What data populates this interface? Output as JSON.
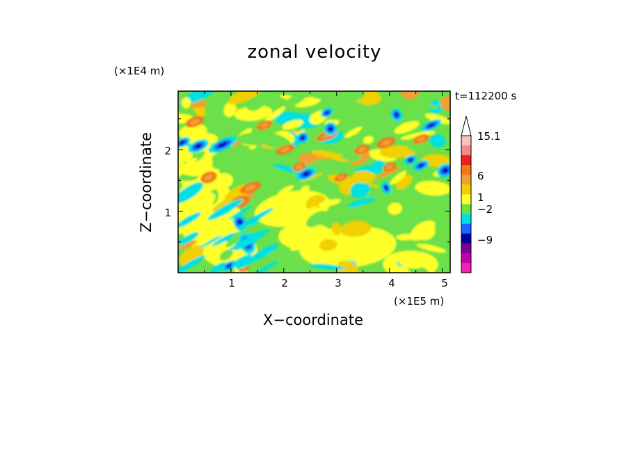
{
  "chart_data": {
    "type": "heatmap",
    "title": "zonal velocity",
    "xlabel": "X−coordinate",
    "ylabel": "Z−coordinate",
    "x_unit": "(×1E5 m)",
    "y_unit": "(×1E4 m)",
    "time_label": "t=112200 s",
    "xlim": [
      0,
      5.15
    ],
    "ylim": [
      0,
      2.95
    ],
    "x_ticks": [
      "1",
      "2",
      "3",
      "4",
      "5"
    ],
    "y_ticks": [
      "1",
      "2"
    ],
    "colorbar": {
      "labels": [
        "15.1",
        "6",
        "1",
        "−2",
        "−9"
      ],
      "levels_top_to_bottom": [
        "arrow",
        "15.1",
        "12",
        "9",
        "6",
        "3",
        "1",
        "0",
        "-1",
        "-2",
        "-5",
        "-7",
        "-9",
        "-12",
        "below"
      ],
      "colors": [
        "#ffffff",
        "#f7c1c1",
        "#f28a8a",
        "#e8221c",
        "#f07a1a",
        "#f0a032",
        "#f0d000",
        "#ffff2a",
        "#6be04a",
        "#00e0e0",
        "#1e64ff",
        "#0000a0",
        "#7a0096",
        "#c000a8",
        "#f020b0"
      ]
    },
    "field_palette": {
      "dark_blue": "#0000a0",
      "blue": "#1e64ff",
      "cyan": "#00e0e0",
      "green": "#6be04a",
      "yellow": "#ffff2a",
      "light_orange": "#f0d000",
      "orange": "#f0a032",
      "red_orange": "#f07a1a"
    }
  }
}
